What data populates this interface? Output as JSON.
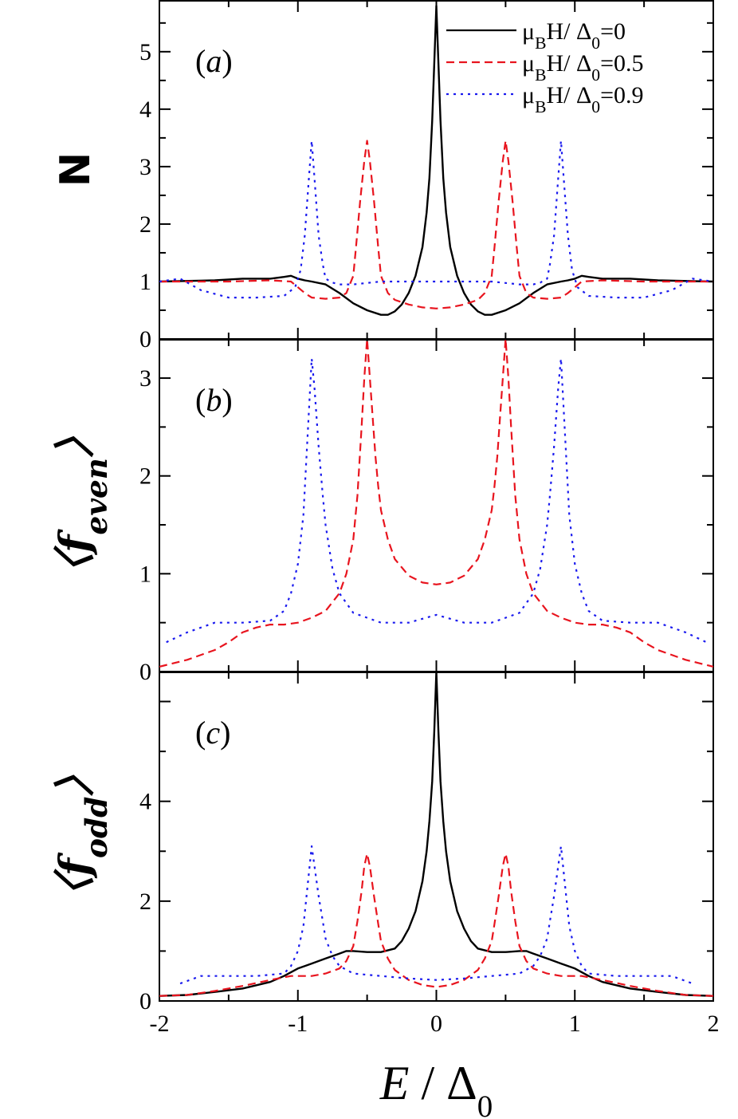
{
  "chart_data": [
    {
      "type": "line",
      "panel": "(a)",
      "ylabel": "N",
      "xlim": [
        -2,
        2
      ],
      "ylim": [
        0,
        5.9
      ],
      "yticks": [
        0,
        1,
        2,
        3,
        4,
        5
      ],
      "legend": {
        "placement": "top-right",
        "entries": [
          "μ<sub>B</sub>H/ Δ<sub>0</sub>=0",
          "μ<sub>B</sub>H/ Δ<sub>0</sub>=0.5",
          "μ<sub>B</sub>H/ Δ<sub>0</sub>=0.9"
        ]
      },
      "series": [
        {
          "name": "μBH/Δ0=0",
          "color": "#000000",
          "style": "solid",
          "x": [
            -2.0,
            -1.6,
            -1.4,
            -1.2,
            -1.1,
            -1.05,
            -1.0,
            -0.95,
            -0.9,
            -0.8,
            -0.7,
            -0.6,
            -0.5,
            -0.4,
            -0.35,
            -0.3,
            -0.25,
            -0.2,
            -0.15,
            -0.1,
            -0.07,
            -0.05,
            -0.03,
            -0.015,
            0.0,
            0.015,
            0.03,
            0.05,
            0.07,
            0.1,
            0.15,
            0.2,
            0.25,
            0.3,
            0.35,
            0.4,
            0.5,
            0.6,
            0.7,
            0.8,
            0.9,
            0.95,
            1.0,
            1.05,
            1.1,
            1.2,
            1.4,
            1.6,
            2.0
          ],
          "y": [
            1.0,
            1.02,
            1.05,
            1.05,
            1.08,
            1.1,
            1.05,
            1.02,
            1.0,
            0.95,
            0.8,
            0.62,
            0.5,
            0.42,
            0.42,
            0.48,
            0.6,
            0.8,
            1.1,
            1.6,
            2.2,
            2.8,
            3.8,
            4.8,
            5.8,
            4.8,
            3.8,
            2.8,
            2.2,
            1.6,
            1.1,
            0.8,
            0.6,
            0.48,
            0.42,
            0.42,
            0.5,
            0.62,
            0.8,
            0.95,
            1.0,
            1.02,
            1.05,
            1.1,
            1.08,
            1.05,
            1.05,
            1.02,
            1.0
          ]
        },
        {
          "name": "μBH/Δ0=0.5",
          "color": "#e8141e",
          "style": "dashed",
          "x": [
            -2.0,
            -1.5,
            -1.2,
            -1.05,
            -1.0,
            -0.95,
            -0.9,
            -0.8,
            -0.7,
            -0.65,
            -0.6,
            -0.58,
            -0.55,
            -0.52,
            -0.5,
            -0.48,
            -0.45,
            -0.42,
            -0.4,
            -0.35,
            -0.3,
            -0.2,
            -0.1,
            0.0,
            0.1,
            0.2,
            0.3,
            0.35,
            0.4,
            0.42,
            0.45,
            0.48,
            0.5,
            0.52,
            0.55,
            0.58,
            0.6,
            0.65,
            0.7,
            0.8,
            0.9,
            0.95,
            1.0,
            1.05,
            1.2,
            1.5,
            2.0
          ],
          "y": [
            1.0,
            1.0,
            1.02,
            1.0,
            0.9,
            0.8,
            0.72,
            0.7,
            0.72,
            0.8,
            1.1,
            1.6,
            2.4,
            3.1,
            3.45,
            3.1,
            2.4,
            1.6,
            1.1,
            0.8,
            0.68,
            0.6,
            0.55,
            0.53,
            0.55,
            0.6,
            0.68,
            0.8,
            1.1,
            1.6,
            2.4,
            3.1,
            3.45,
            3.1,
            2.4,
            1.6,
            1.1,
            0.8,
            0.72,
            0.7,
            0.72,
            0.8,
            0.9,
            1.0,
            1.02,
            1.0,
            1.0
          ]
        },
        {
          "name": "μBH/Δ0=0.9",
          "color": "#1a1aee",
          "style": "dotted",
          "x": [
            -2.0,
            -1.85,
            -1.7,
            -1.5,
            -1.3,
            -1.1,
            -1.02,
            -0.98,
            -0.95,
            -0.92,
            -0.9,
            -0.88,
            -0.85,
            -0.82,
            -0.8,
            -0.75,
            -0.7,
            -0.6,
            -0.4,
            0.0,
            0.4,
            0.6,
            0.7,
            0.75,
            0.8,
            0.82,
            0.85,
            0.88,
            0.9,
            0.92,
            0.95,
            0.98,
            1.02,
            1.1,
            1.3,
            1.5,
            1.7,
            1.85,
            2.0
          ],
          "y": [
            1.0,
            1.05,
            0.85,
            0.72,
            0.72,
            0.75,
            0.9,
            1.2,
            1.8,
            2.8,
            3.45,
            2.8,
            1.8,
            1.3,
            1.05,
            0.98,
            0.95,
            0.95,
            1.0,
            1.0,
            1.0,
            0.95,
            0.95,
            0.98,
            1.05,
            1.3,
            1.8,
            2.8,
            3.45,
            2.8,
            1.8,
            1.2,
            0.9,
            0.75,
            0.72,
            0.72,
            0.85,
            1.05,
            1.0
          ]
        }
      ]
    },
    {
      "type": "line",
      "panel": "(b)",
      "ylabel": "〈f<sub>even</sub>〉",
      "xlim": [
        -2,
        2
      ],
      "ylim": [
        0,
        3.4
      ],
      "yticks": [
        0,
        1,
        2,
        3
      ],
      "series": [
        {
          "name": "μBH/Δ0=0.5",
          "color": "#e8141e",
          "style": "dashed",
          "x": [
            -2.0,
            -1.8,
            -1.6,
            -1.5,
            -1.4,
            -1.3,
            -1.2,
            -1.1,
            -1.0,
            -0.9,
            -0.8,
            -0.7,
            -0.65,
            -0.6,
            -0.57,
            -0.54,
            -0.52,
            -0.5,
            -0.48,
            -0.46,
            -0.44,
            -0.42,
            -0.4,
            -0.35,
            -0.3,
            -0.2,
            -0.1,
            0.0,
            0.1,
            0.2,
            0.3,
            0.35,
            0.4,
            0.42,
            0.44,
            0.46,
            0.48,
            0.5,
            0.52,
            0.54,
            0.57,
            0.6,
            0.65,
            0.7,
            0.8,
            0.9,
            1.0,
            1.1,
            1.2,
            1.3,
            1.4,
            1.5,
            1.6,
            1.8,
            2.0
          ],
          "y": [
            0.05,
            0.12,
            0.22,
            0.3,
            0.4,
            0.45,
            0.48,
            0.48,
            0.5,
            0.55,
            0.62,
            0.8,
            1.0,
            1.35,
            1.8,
            2.5,
            3.0,
            3.4,
            3.0,
            2.6,
            2.2,
            1.9,
            1.65,
            1.35,
            1.15,
            0.98,
            0.91,
            0.89,
            0.91,
            0.98,
            1.15,
            1.35,
            1.65,
            1.9,
            2.2,
            2.6,
            3.0,
            3.4,
            3.0,
            2.5,
            1.8,
            1.35,
            1.0,
            0.8,
            0.62,
            0.55,
            0.5,
            0.48,
            0.48,
            0.45,
            0.4,
            0.3,
            0.22,
            0.12,
            0.05
          ]
        },
        {
          "name": "μBH/Δ0=0.9",
          "color": "#1a1aee",
          "style": "dotted",
          "x": [
            -1.95,
            -1.8,
            -1.6,
            -1.4,
            -1.2,
            -1.1,
            -1.05,
            -1.0,
            -0.96,
            -0.93,
            -0.9,
            -0.88,
            -0.85,
            -0.82,
            -0.8,
            -0.75,
            -0.7,
            -0.6,
            -0.4,
            -0.2,
            0.0,
            0.2,
            0.4,
            0.6,
            0.7,
            0.75,
            0.8,
            0.82,
            0.85,
            0.88,
            0.9,
            0.93,
            0.96,
            1.0,
            1.05,
            1.1,
            1.2,
            1.4,
            1.6,
            1.8,
            1.95
          ],
          "y": [
            0.3,
            0.4,
            0.5,
            0.5,
            0.52,
            0.62,
            0.8,
            1.1,
            1.6,
            2.4,
            3.2,
            2.9,
            2.3,
            1.8,
            1.5,
            1.05,
            0.8,
            0.6,
            0.5,
            0.5,
            0.58,
            0.5,
            0.5,
            0.6,
            0.8,
            1.05,
            1.5,
            1.8,
            2.3,
            2.9,
            3.2,
            2.4,
            1.6,
            1.1,
            0.8,
            0.62,
            0.52,
            0.5,
            0.5,
            0.4,
            0.3
          ]
        }
      ]
    },
    {
      "type": "line",
      "panel": "(c)",
      "ylabel": "〈f<sub>odd</sub>〉",
      "xlabel": "E / Δ0",
      "xlim": [
        -2,
        2
      ],
      "xticks": [
        -2,
        -1,
        0,
        1,
        2
      ],
      "ylim": [
        0,
        6.6
      ],
      "yticks": [
        0,
        2,
        4
      ],
      "series": [
        {
          "name": "μBH/Δ0=0",
          "color": "#000000",
          "style": "solid",
          "x": [
            -2.0,
            -1.8,
            -1.6,
            -1.4,
            -1.2,
            -1.1,
            -1.0,
            -0.9,
            -0.8,
            -0.7,
            -0.65,
            -0.6,
            -0.5,
            -0.4,
            -0.3,
            -0.25,
            -0.2,
            -0.15,
            -0.1,
            -0.07,
            -0.05,
            -0.03,
            -0.015,
            0.0,
            0.015,
            0.03,
            0.05,
            0.07,
            0.1,
            0.15,
            0.2,
            0.25,
            0.3,
            0.4,
            0.5,
            0.6,
            0.65,
            0.7,
            0.8,
            0.9,
            1.0,
            1.1,
            1.2,
            1.4,
            1.6,
            1.8,
            2.0
          ],
          "y": [
            0.1,
            0.12,
            0.18,
            0.25,
            0.38,
            0.5,
            0.65,
            0.75,
            0.85,
            0.95,
            1.0,
            1.0,
            0.98,
            0.98,
            1.05,
            1.2,
            1.45,
            1.8,
            2.4,
            3.0,
            3.6,
            4.4,
            5.4,
            6.6,
            5.4,
            4.4,
            3.6,
            3.0,
            2.4,
            1.8,
            1.45,
            1.2,
            1.05,
            0.98,
            0.98,
            1.0,
            1.0,
            0.95,
            0.85,
            0.75,
            0.65,
            0.5,
            0.38,
            0.25,
            0.18,
            0.12,
            0.1
          ]
        },
        {
          "name": "μBH/Δ0=0.5",
          "color": "#e8141e",
          "style": "dashed",
          "x": [
            -2.0,
            -1.8,
            -1.6,
            -1.4,
            -1.2,
            -1.05,
            -1.0,
            -0.9,
            -0.8,
            -0.7,
            -0.65,
            -0.6,
            -0.57,
            -0.54,
            -0.52,
            -0.5,
            -0.48,
            -0.45,
            -0.42,
            -0.4,
            -0.35,
            -0.3,
            -0.2,
            -0.1,
            0.0,
            0.1,
            0.2,
            0.3,
            0.35,
            0.4,
            0.42,
            0.45,
            0.48,
            0.5,
            0.52,
            0.54,
            0.57,
            0.6,
            0.65,
            0.7,
            0.8,
            0.9,
            1.0,
            1.05,
            1.2,
            1.4,
            1.6,
            1.8,
            2.0
          ],
          "y": [
            0.1,
            0.12,
            0.2,
            0.3,
            0.42,
            0.5,
            0.5,
            0.5,
            0.55,
            0.65,
            0.8,
            1.1,
            1.6,
            2.2,
            2.7,
            2.95,
            2.7,
            2.1,
            1.55,
            1.2,
            0.85,
            0.62,
            0.42,
            0.32,
            0.28,
            0.32,
            0.42,
            0.62,
            0.85,
            1.2,
            1.55,
            2.1,
            2.7,
            2.95,
            2.7,
            2.2,
            1.6,
            1.1,
            0.8,
            0.65,
            0.55,
            0.5,
            0.5,
            0.5,
            0.42,
            0.3,
            0.2,
            0.12,
            0.1
          ]
        },
        {
          "name": "μBH/Δ0=0.9",
          "color": "#1a1aee",
          "style": "dotted",
          "x": [
            -1.85,
            -1.7,
            -1.5,
            -1.3,
            -1.1,
            -1.05,
            -1.0,
            -0.96,
            -0.93,
            -0.9,
            -0.88,
            -0.85,
            -0.82,
            -0.8,
            -0.75,
            -0.7,
            -0.6,
            -0.4,
            -0.2,
            0.0,
            0.2,
            0.4,
            0.6,
            0.7,
            0.75,
            0.8,
            0.82,
            0.85,
            0.88,
            0.9,
            0.93,
            0.96,
            1.0,
            1.05,
            1.1,
            1.3,
            1.5,
            1.7,
            1.85
          ],
          "y": [
            0.35,
            0.5,
            0.5,
            0.5,
            0.55,
            0.7,
            1.0,
            1.5,
            2.3,
            3.1,
            2.7,
            2.1,
            1.6,
            1.25,
            0.9,
            0.7,
            0.55,
            0.5,
            0.45,
            0.42,
            0.45,
            0.5,
            0.55,
            0.7,
            0.9,
            1.25,
            1.6,
            2.1,
            2.7,
            3.1,
            2.3,
            1.5,
            1.0,
            0.7,
            0.55,
            0.5,
            0.5,
            0.5,
            0.35
          ]
        }
      ]
    }
  ]
}
